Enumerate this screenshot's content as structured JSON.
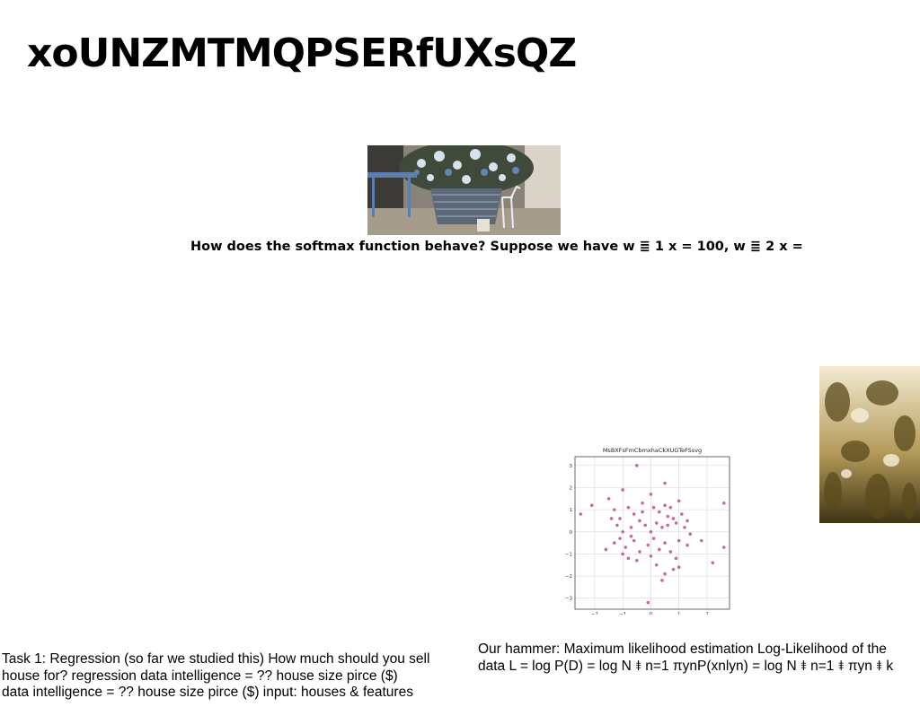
{
  "slide": {
    "title": "xoUNZMTMQPSERfUXsQZ",
    "question": "How does the softmax function behave? Suppose we have w ≣ 1 x = 100, w ≣ 2 x =",
    "left_text": [
      "Task 1: Regression (so far we studied this) How much should you sell",
      "house for? regression data intelligence = ?? house size pirce ($)",
      "data intelligence = ?? house size pirce ($) input: houses & features"
    ],
    "right_text": [
      "Our hammer: Maximum likelihood estimation Log-Likelihood of the",
      "data L = log P(D) = log N ⯒ n=1 πynP(xnlyn) = log N ⯒ n=1 ⯒ πyn ⯒ k"
    ]
  },
  "images": {
    "tree_photo": "christmas-tree-photo",
    "texture_photo": "sepia-texture-photo"
  },
  "chart_data": {
    "type": "scatter",
    "title": "MsBXFsFmCbmxhaCkXUGTeFSsvg",
    "xlim": [
      -2.7,
      2.8
    ],
    "ylim": [
      -3.5,
      3.4
    ],
    "xticks": [
      "−2",
      "−1",
      "0",
      "1",
      "2"
    ],
    "yticks": [
      "3",
      "2",
      "1",
      "0",
      "−1",
      "−2",
      "−3"
    ],
    "grid": true,
    "color": "#c0508a",
    "points": [
      [
        -0.5,
        3.0
      ],
      [
        0.5,
        2.2
      ],
      [
        -1.5,
        1.5
      ],
      [
        -1.0,
        1.9
      ],
      [
        0.0,
        1.7
      ],
      [
        0.5,
        1.2
      ],
      [
        1.0,
        1.4
      ],
      [
        2.6,
        1.3
      ],
      [
        -2.5,
        0.8
      ],
      [
        -2.1,
        1.2
      ],
      [
        -1.3,
        1.0
      ],
      [
        -1.1,
        0.6
      ],
      [
        -0.8,
        1.1
      ],
      [
        -0.6,
        0.8
      ],
      [
        -0.3,
        1.3
      ],
      [
        0.1,
        1.1
      ],
      [
        0.3,
        0.9
      ],
      [
        0.7,
        1.1
      ],
      [
        0.8,
        0.6
      ],
      [
        1.1,
        0.8
      ],
      [
        1.3,
        0.5
      ],
      [
        -1.4,
        0.6
      ],
      [
        -1.2,
        0.3
      ],
      [
        -1.0,
        0.0
      ],
      [
        -0.7,
        0.2
      ],
      [
        -0.4,
        0.5
      ],
      [
        -0.2,
        0.3
      ],
      [
        0.0,
        0.0
      ],
      [
        0.2,
        0.4
      ],
      [
        0.4,
        0.2
      ],
      [
        0.6,
        0.3
      ],
      [
        0.9,
        0.4
      ],
      [
        1.2,
        0.2
      ],
      [
        1.4,
        -0.1
      ],
      [
        1.8,
        -0.4
      ],
      [
        -1.6,
        -0.8
      ],
      [
        -1.3,
        -0.5
      ],
      [
        -1.1,
        -0.3
      ],
      [
        -0.9,
        -0.7
      ],
      [
        -0.6,
        -0.4
      ],
      [
        -0.4,
        -0.9
      ],
      [
        -0.1,
        -0.6
      ],
      [
        0.1,
        -0.3
      ],
      [
        0.3,
        -0.8
      ],
      [
        0.5,
        -0.5
      ],
      [
        0.7,
        -0.9
      ],
      [
        1.0,
        -0.4
      ],
      [
        1.3,
        -0.6
      ],
      [
        -1.0,
        -1.0
      ],
      [
        -0.8,
        -1.2
      ],
      [
        -0.5,
        -1.3
      ],
      [
        0.0,
        -1.1
      ],
      [
        0.2,
        -1.5
      ],
      [
        0.5,
        -1.9
      ],
      [
        0.8,
        -1.7
      ],
      [
        1.0,
        -1.6
      ],
      [
        0.4,
        -2.2
      ],
      [
        -0.1,
        -3.2
      ],
      [
        2.2,
        -1.4
      ],
      [
        2.6,
        -0.7
      ],
      [
        -0.3,
        0.9
      ],
      [
        0.6,
        0.7
      ],
      [
        -0.7,
        -0.2
      ],
      [
        0.9,
        -1.2
      ]
    ]
  }
}
